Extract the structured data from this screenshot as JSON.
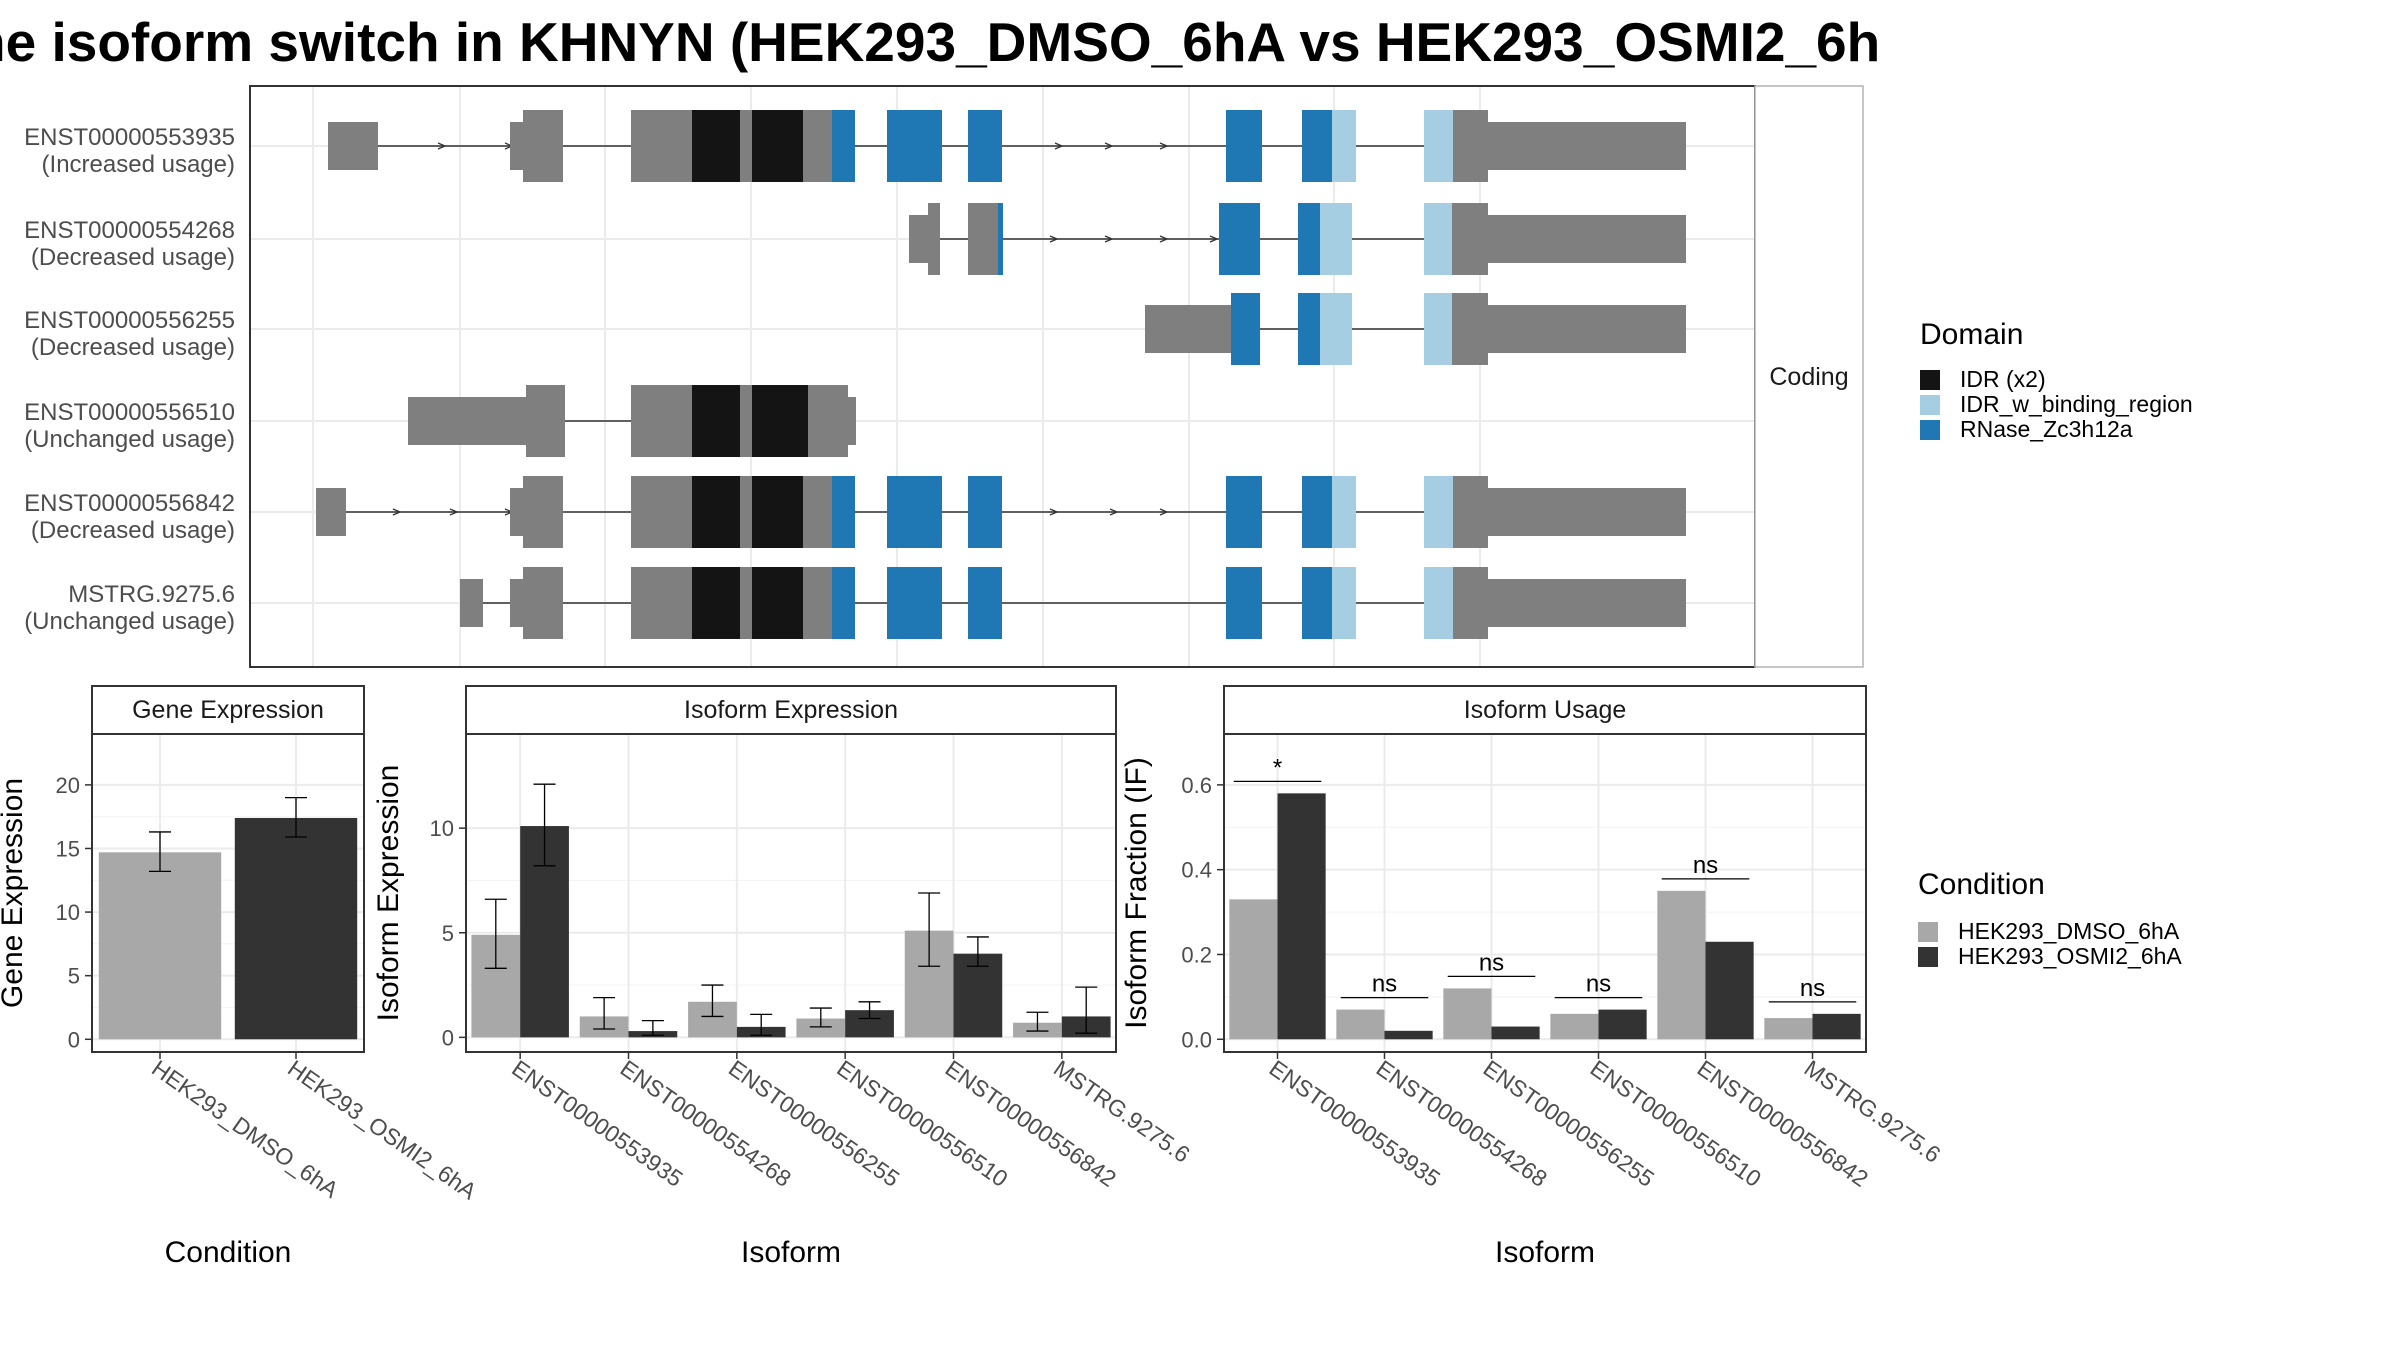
{
  "title": "ne isoform switch in KHNYN (HEK293_DMSO_6hA vs HEK293_OSMI2_6h",
  "colors": {
    "exon": "#7f7f7f",
    "idr": "#141414",
    "idr_binding": "#a6cee3",
    "rnase": "#1f78b4",
    "cond1": "#a8a8a8",
    "cond2": "#333333",
    "grid": "#ebebeb",
    "line": "#333333"
  },
  "structure": {
    "facet_label": "Coding",
    "transcripts": [
      {
        "id": "ENST00000553935",
        "status": "(Increased usage)"
      },
      {
        "id": "ENST00000554268",
        "status": "(Decreased usage)"
      },
      {
        "id": "ENST00000556255",
        "status": "(Decreased usage)"
      },
      {
        "id": "ENST00000556510",
        "status": "(Unchanged usage)"
      },
      {
        "id": "ENST00000556842",
        "status": "(Decreased usage)"
      },
      {
        "id": "MSTRG.9275.6",
        "status": "(Unchanged usage)"
      }
    ]
  },
  "legend_domain": {
    "title": "Domain",
    "items": [
      {
        "label": "IDR (x2)",
        "color": "#141414"
      },
      {
        "label": "IDR_w_binding_region",
        "color": "#a6cee3"
      },
      {
        "label": "RNase_Zc3h12a",
        "color": "#1f78b4"
      }
    ]
  },
  "legend_condition": {
    "title": "Condition",
    "items": [
      {
        "label": "HEK293_DMSO_6hA",
        "color": "#a8a8a8"
      },
      {
        "label": "HEK293_OSMI2_6hA",
        "color": "#333333"
      }
    ]
  },
  "chart_data": [
    {
      "type": "bar",
      "title": "Gene Expression",
      "xlabel": "Condition",
      "ylabel": "Gene Expression",
      "categories": [
        "HEK293_DMSO_6hA",
        "HEK293_OSMI2_6hA"
      ],
      "values": [
        14.7,
        17.4
      ],
      "error_low": [
        13.2,
        15.9
      ],
      "error_high": [
        16.3,
        19.0
      ],
      "ylim": [
        -1,
        24
      ],
      "yticks": [
        0,
        5,
        10,
        15,
        20
      ],
      "ytick_labels": [
        "0",
        "5",
        "10",
        "15",
        "20"
      ]
    },
    {
      "type": "bar",
      "title": "Isoform Expression",
      "xlabel": "Isoform",
      "ylabel": "Isoform Expression",
      "categories": [
        "ENST00000553935",
        "ENST00000554268",
        "ENST00000556255",
        "ENST00000556510",
        "ENST00000556842",
        "MSTRG.9275.6"
      ],
      "series": [
        {
          "name": "HEK293_DMSO_6hA",
          "values": [
            4.9,
            1.0,
            1.7,
            0.9,
            5.1,
            0.7
          ],
          "error_low": [
            3.3,
            0.4,
            1.0,
            0.5,
            3.4,
            0.3
          ],
          "error_high": [
            6.6,
            1.9,
            2.5,
            1.4,
            6.9,
            1.2
          ]
        },
        {
          "name": "HEK293_OSMI2_6hA",
          "values": [
            10.1,
            0.3,
            0.5,
            1.3,
            4.0,
            1.0
          ],
          "error_low": [
            8.2,
            0.1,
            0.1,
            0.9,
            3.4,
            0.2
          ],
          "error_high": [
            12.1,
            0.8,
            1.1,
            1.7,
            4.8,
            2.4
          ]
        }
      ],
      "ylim": [
        -0.7,
        14.5
      ],
      "yticks": [
        0,
        5,
        10
      ],
      "ytick_labels": [
        "0",
        "5",
        "10"
      ]
    },
    {
      "type": "bar",
      "title": "Isoform Usage",
      "xlabel": "Isoform",
      "ylabel": "Isoform Fraction (IF)",
      "categories": [
        "ENST00000553935",
        "ENST00000554268",
        "ENST00000556255",
        "ENST00000556510",
        "ENST00000556842",
        "MSTRG.9275.6"
      ],
      "series": [
        {
          "name": "HEK293_DMSO_6hA",
          "values": [
            0.33,
            0.07,
            0.12,
            0.06,
            0.35,
            0.05
          ]
        },
        {
          "name": "HEK293_OSMI2_6hA",
          "values": [
            0.58,
            0.02,
            0.03,
            0.07,
            0.23,
            0.06
          ]
        }
      ],
      "significance": [
        "*",
        "ns",
        "ns",
        "ns",
        "ns",
        "ns"
      ],
      "ylim": [
        -0.03,
        0.72
      ],
      "yticks": [
        0.0,
        0.2,
        0.4,
        0.6
      ],
      "ytick_labels": [
        "0.0",
        "0.2",
        "0.4",
        "0.6"
      ]
    }
  ]
}
